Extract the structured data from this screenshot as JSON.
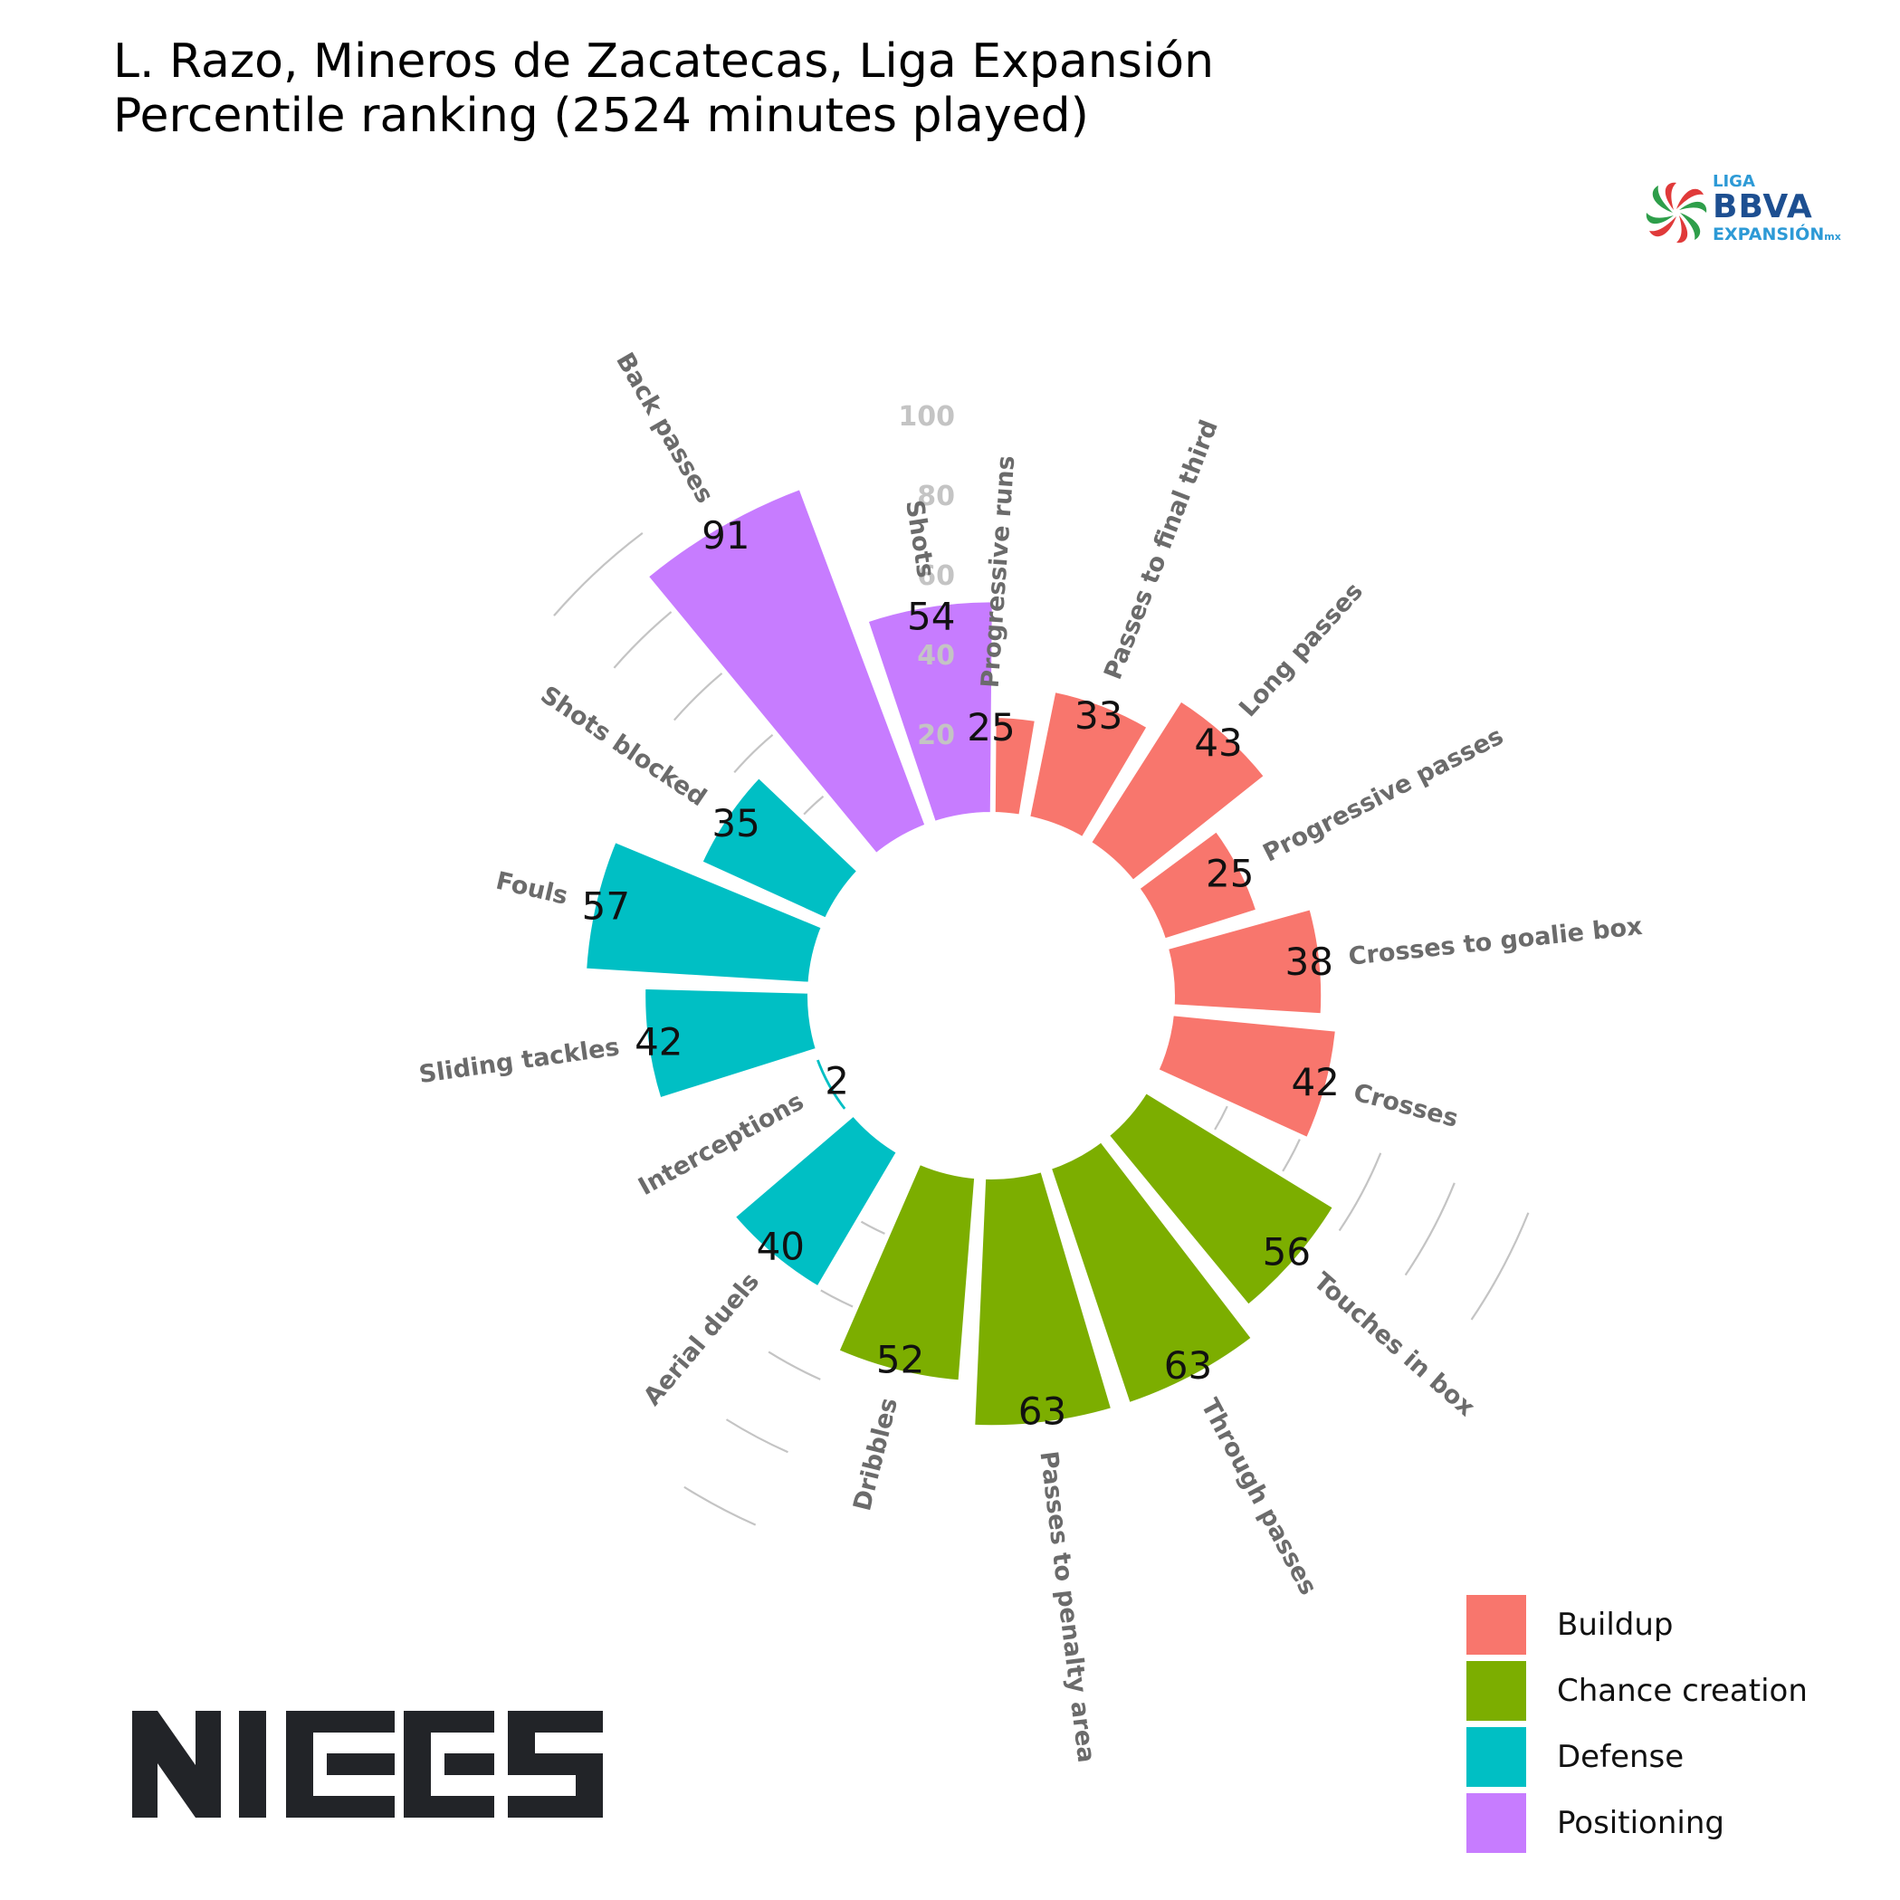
{
  "title": {
    "line1": "L. Razo, Mineros de Zacatecas, Liga Expansión",
    "line2": "Percentile ranking (2524 minutes played)"
  },
  "league_logo": {
    "liga": "LIGA",
    "bbva": "BBVA",
    "expansion": "EXPANSIÓN",
    "mx": "mx"
  },
  "brand_logo": {
    "text": "NIES"
  },
  "colors": {
    "Buildup": "#f8766d",
    "Chance creation": "#7cae00",
    "Defense": "#00bfc4",
    "Positioning": "#c77cff",
    "label_grey": "#6b6b6b",
    "grid_grey": "#c4c4c4"
  },
  "legend": [
    {
      "label": "Buildup",
      "color": "#f8766d"
    },
    {
      "label": "Chance creation",
      "color": "#7cae00"
    },
    {
      "label": "Defense",
      "color": "#00bfc4"
    },
    {
      "label": "Positioning",
      "color": "#c77cff"
    }
  ],
  "chart_data": {
    "type": "bar",
    "subtype": "polar-bar",
    "radial_ticks": [
      "20",
      "40",
      "60",
      "80",
      "100"
    ],
    "rlim": [
      0,
      100
    ],
    "legend_position": "bottom-right",
    "categories": [
      "Progressive runs",
      "Passes to final third",
      "Long passes",
      "Progressive passes",
      "Crosses to goalie box",
      "Crosses",
      "Touches in box",
      "Through passes",
      "Passes to penalty area",
      "Dribbles",
      "Aerial duels",
      "Interceptions",
      "Sliding tackles",
      "Fouls",
      "Shots blocked",
      "Back passes",
      "Shots"
    ],
    "values": [
      25,
      33,
      43,
      25,
      38,
      42,
      56,
      63,
      63,
      52,
      40,
      2,
      42,
      57,
      35,
      91,
      54
    ],
    "groups": [
      "Buildup",
      "Buildup",
      "Buildup",
      "Buildup",
      "Buildup",
      "Buildup",
      "Chance creation",
      "Chance creation",
      "Chance creation",
      "Chance creation",
      "Defense",
      "Defense",
      "Defense",
      "Defense",
      "Defense",
      "Positioning",
      "Positioning"
    ]
  }
}
